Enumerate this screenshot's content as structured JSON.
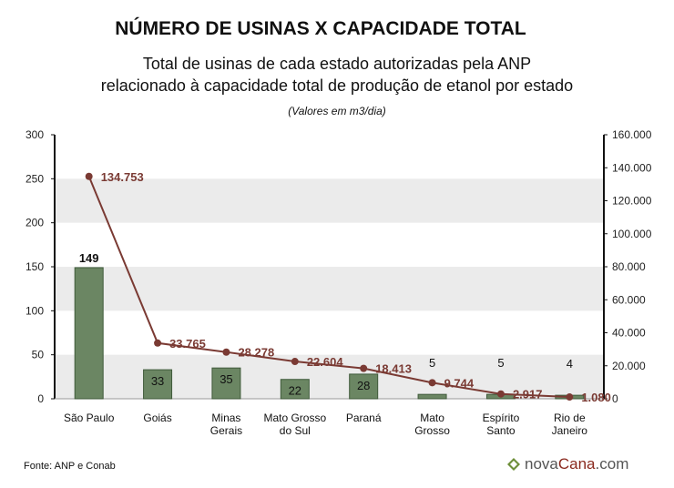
{
  "title": "NÚMERO DE USINAS X CAPACIDADE TOTAL",
  "subtitle_line1": "Total de usinas de cada estado autorizadas pela ANP",
  "subtitle_line2": "relacionado à capacidade total de produção de etanol por estado",
  "note": "(Valores em m3/dia)",
  "source": "Fonte: ANP e Conab",
  "logo": {
    "text_pre": "nova",
    "text_accent": "Cana",
    "text_post": ".com"
  },
  "colors": {
    "bar": "#6b8663",
    "bar_border": "#3f5a3a",
    "line": "#7a3a33",
    "point": "#7a3a33",
    "band": "#ebebeb"
  },
  "chart_data": {
    "type": "bar+line",
    "categories": [
      [
        "São Paulo"
      ],
      [
        "Goiás"
      ],
      [
        "Minas",
        "Gerais"
      ],
      [
        "Mato Grosso",
        "do Sul"
      ],
      [
        "Paraná"
      ],
      [
        "Mato",
        "Grosso"
      ],
      [
        "Espírito",
        "Santo"
      ],
      [
        "Rio de",
        "Janeiro"
      ]
    ],
    "series": [
      {
        "values": [
          149,
          33,
          35,
          22,
          28,
          5,
          5,
          4
        ],
        "labels": [
          "149",
          "33",
          "35",
          "22",
          "28",
          "5",
          "5",
          "4"
        ],
        "axis": "left"
      },
      {
        "values": [
          134753,
          33765,
          28278,
          22604,
          18413,
          9744,
          2917,
          1080
        ],
        "labels": [
          "134.753",
          "33.765",
          "28.278",
          "22.604",
          "18.413",
          "9.744",
          "2.917",
          "1.080"
        ],
        "axis": "right"
      }
    ],
    "y_left": {
      "min": 0,
      "max": 300,
      "ticks": [
        "0",
        "50",
        "100",
        "150",
        "200",
        "250",
        "300"
      ]
    },
    "y_right": {
      "min": 0,
      "max": 160000,
      "ticks": [
        "0",
        "20.000",
        "40.000",
        "60.000",
        "80.000",
        "100.000",
        "120.000",
        "140.000",
        "160.000"
      ]
    },
    "grid": "alternating horizontal bands"
  }
}
